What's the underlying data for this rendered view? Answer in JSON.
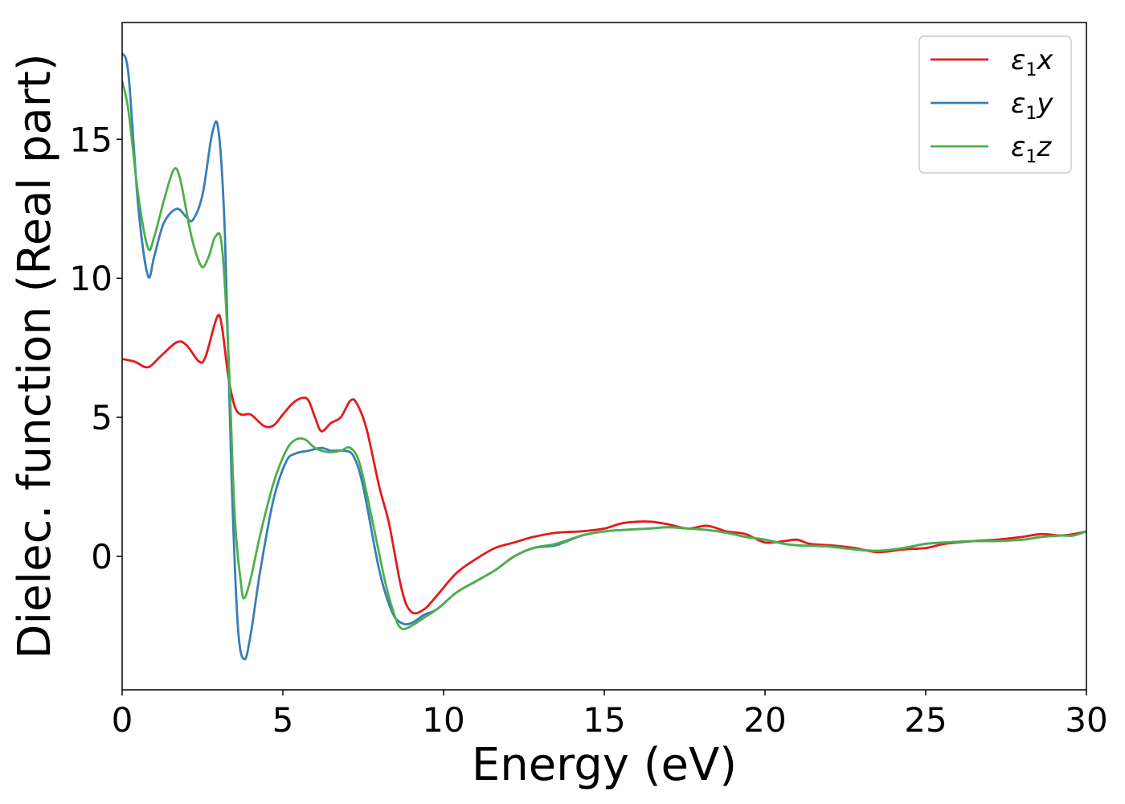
{
  "chart_data": {
    "type": "line",
    "title": "",
    "xlabel": "Energy (eV)",
    "ylabel": "Dielec. function (Real part)",
    "xlim": [
      0,
      30
    ],
    "ylim": [
      -4.8,
      19.2
    ],
    "xticks": [
      0,
      5,
      10,
      15,
      20,
      25,
      30
    ],
    "yticks": [
      0,
      5,
      10,
      15
    ],
    "grid": false,
    "legend": "top-right",
    "series": [
      {
        "name": "ε1x",
        "symbol": "ε",
        "sub": "1",
        "suffix": "x",
        "color": "#e41a1c",
        "points": [
          [
            0,
            7.1
          ],
          [
            0.4,
            7.0
          ],
          [
            0.8,
            6.8
          ],
          [
            1.2,
            7.2
          ],
          [
            1.7,
            7.7
          ],
          [
            2.0,
            7.6
          ],
          [
            2.4,
            7.0
          ],
          [
            2.6,
            7.2
          ],
          [
            2.95,
            8.6
          ],
          [
            3.1,
            8.3
          ],
          [
            3.3,
            6.5
          ],
          [
            3.5,
            5.4
          ],
          [
            3.7,
            5.1
          ],
          [
            4.0,
            5.1
          ],
          [
            4.4,
            4.7
          ],
          [
            4.7,
            4.7
          ],
          [
            5.0,
            5.1
          ],
          [
            5.3,
            5.5
          ],
          [
            5.6,
            5.7
          ],
          [
            5.8,
            5.6
          ],
          [
            6.0,
            5.0
          ],
          [
            6.2,
            4.5
          ],
          [
            6.5,
            4.8
          ],
          [
            6.8,
            5.0
          ],
          [
            7.1,
            5.6
          ],
          [
            7.3,
            5.5
          ],
          [
            7.6,
            4.6
          ],
          [
            8.0,
            2.5
          ],
          [
            8.3,
            1.2
          ],
          [
            8.7,
            -1.2
          ],
          [
            9.0,
            -2.0
          ],
          [
            9.4,
            -1.9
          ],
          [
            9.8,
            -1.4
          ],
          [
            10.4,
            -0.6
          ],
          [
            11.0,
            -0.1
          ],
          [
            11.6,
            0.3
          ],
          [
            12.2,
            0.5
          ],
          [
            12.8,
            0.7
          ],
          [
            13.5,
            0.85
          ],
          [
            14.3,
            0.9
          ],
          [
            15.0,
            1.0
          ],
          [
            15.6,
            1.2
          ],
          [
            16.4,
            1.25
          ],
          [
            17.0,
            1.15
          ],
          [
            17.6,
            1.0
          ],
          [
            18.2,
            1.1
          ],
          [
            18.8,
            0.9
          ],
          [
            19.4,
            0.8
          ],
          [
            20.0,
            0.5
          ],
          [
            20.6,
            0.55
          ],
          [
            21.0,
            0.6
          ],
          [
            21.4,
            0.45
          ],
          [
            22.0,
            0.4
          ],
          [
            22.8,
            0.3
          ],
          [
            23.5,
            0.15
          ],
          [
            24.3,
            0.25
          ],
          [
            25.0,
            0.3
          ],
          [
            25.6,
            0.45
          ],
          [
            26.5,
            0.55
          ],
          [
            27.2,
            0.6
          ],
          [
            28.0,
            0.7
          ],
          [
            28.6,
            0.8
          ],
          [
            29.2,
            0.75
          ],
          [
            29.6,
            0.8
          ],
          [
            30,
            0.9
          ]
        ]
      },
      {
        "name": "ε1y",
        "symbol": "ε",
        "sub": "1",
        "suffix": "y",
        "color": "#377eb8",
        "points": [
          [
            0,
            18.1
          ],
          [
            0.2,
            17.3
          ],
          [
            0.5,
            12.6
          ],
          [
            0.8,
            10.1
          ],
          [
            1.0,
            10.8
          ],
          [
            1.3,
            12.0
          ],
          [
            1.7,
            12.5
          ],
          [
            2.0,
            12.2
          ],
          [
            2.2,
            12.1
          ],
          [
            2.5,
            13.0
          ],
          [
            2.8,
            15.2
          ],
          [
            3.0,
            15.3
          ],
          [
            3.2,
            11.5
          ],
          [
            3.4,
            3.0
          ],
          [
            3.6,
            -2.5
          ],
          [
            3.8,
            -3.7
          ],
          [
            4.0,
            -2.8
          ],
          [
            4.3,
            -0.5
          ],
          [
            4.7,
            2.0
          ],
          [
            5.1,
            3.4
          ],
          [
            5.4,
            3.7
          ],
          [
            5.8,
            3.8
          ],
          [
            6.2,
            3.9
          ],
          [
            6.5,
            3.8
          ],
          [
            6.9,
            3.8
          ],
          [
            7.2,
            3.6
          ],
          [
            7.5,
            2.5
          ],
          [
            8.0,
            -0.5
          ],
          [
            8.4,
            -2.0
          ],
          [
            8.7,
            -2.4
          ],
          [
            9.0,
            -2.4
          ],
          [
            9.4,
            -2.1
          ],
          [
            9.8,
            -1.9
          ],
          [
            10.4,
            -1.3
          ],
          [
            11.0,
            -0.9
          ],
          [
            11.6,
            -0.5
          ],
          [
            12.2,
            0.0
          ],
          [
            12.8,
            0.3
          ],
          [
            13.5,
            0.4
          ],
          [
            14.3,
            0.75
          ],
          [
            15.0,
            0.9
          ],
          [
            15.6,
            0.95
          ],
          [
            16.4,
            1.0
          ],
          [
            17.0,
            1.05
          ],
          [
            17.6,
            1.0
          ],
          [
            18.2,
            0.95
          ],
          [
            18.8,
            0.85
          ],
          [
            19.4,
            0.7
          ],
          [
            20.0,
            0.6
          ],
          [
            20.6,
            0.45
          ],
          [
            21.0,
            0.4
          ],
          [
            21.4,
            0.38
          ],
          [
            22.0,
            0.35
          ],
          [
            22.8,
            0.25
          ],
          [
            23.5,
            0.2
          ],
          [
            24.3,
            0.3
          ],
          [
            25.0,
            0.45
          ],
          [
            25.6,
            0.5
          ],
          [
            26.5,
            0.55
          ],
          [
            27.2,
            0.55
          ],
          [
            28.0,
            0.6
          ],
          [
            28.6,
            0.7
          ],
          [
            29.2,
            0.75
          ],
          [
            29.6,
            0.75
          ],
          [
            30,
            0.9
          ]
        ]
      },
      {
        "name": "ε1z",
        "symbol": "ε",
        "sub": "1",
        "suffix": "z",
        "color": "#4daf4a",
        "points": [
          [
            0,
            17.1
          ],
          [
            0.2,
            16.0
          ],
          [
            0.5,
            13.0
          ],
          [
            0.8,
            11.1
          ],
          [
            1.0,
            11.5
          ],
          [
            1.3,
            12.8
          ],
          [
            1.6,
            13.9
          ],
          [
            1.8,
            13.6
          ],
          [
            2.1,
            11.8
          ],
          [
            2.3,
            10.9
          ],
          [
            2.5,
            10.4
          ],
          [
            2.7,
            10.8
          ],
          [
            2.9,
            11.5
          ],
          [
            3.1,
            11.2
          ],
          [
            3.3,
            7.5
          ],
          [
            3.5,
            1.5
          ],
          [
            3.7,
            -1.0
          ],
          [
            3.8,
            -1.5
          ],
          [
            4.0,
            -0.8
          ],
          [
            4.3,
            0.8
          ],
          [
            4.7,
            2.6
          ],
          [
            5.1,
            3.8
          ],
          [
            5.4,
            4.2
          ],
          [
            5.7,
            4.2
          ],
          [
            6.0,
            3.9
          ],
          [
            6.4,
            3.75
          ],
          [
            6.8,
            3.8
          ],
          [
            7.1,
            3.9
          ],
          [
            7.4,
            3.3
          ],
          [
            7.8,
            1.2
          ],
          [
            8.2,
            -1.0
          ],
          [
            8.5,
            -2.2
          ],
          [
            8.7,
            -2.6
          ],
          [
            9.0,
            -2.5
          ],
          [
            9.4,
            -2.2
          ],
          [
            9.8,
            -1.9
          ],
          [
            10.4,
            -1.3
          ],
          [
            11.0,
            -0.9
          ],
          [
            11.6,
            -0.5
          ],
          [
            12.2,
            0.0
          ],
          [
            12.8,
            0.3
          ],
          [
            13.5,
            0.45
          ],
          [
            14.3,
            0.75
          ],
          [
            15.0,
            0.9
          ],
          [
            15.6,
            0.95
          ],
          [
            16.4,
            1.0
          ],
          [
            17.0,
            1.05
          ],
          [
            17.6,
            1.0
          ],
          [
            18.2,
            0.95
          ],
          [
            18.8,
            0.85
          ],
          [
            19.4,
            0.7
          ],
          [
            20.0,
            0.6
          ],
          [
            20.6,
            0.45
          ],
          [
            21.0,
            0.4
          ],
          [
            21.4,
            0.38
          ],
          [
            22.0,
            0.35
          ],
          [
            22.8,
            0.25
          ],
          [
            23.5,
            0.2
          ],
          [
            24.3,
            0.3
          ],
          [
            25.0,
            0.45
          ],
          [
            25.6,
            0.5
          ],
          [
            26.5,
            0.55
          ],
          [
            27.2,
            0.55
          ],
          [
            28.0,
            0.6
          ],
          [
            28.6,
            0.7
          ],
          [
            29.2,
            0.75
          ],
          [
            29.6,
            0.75
          ],
          [
            30,
            0.9
          ]
        ]
      }
    ]
  }
}
